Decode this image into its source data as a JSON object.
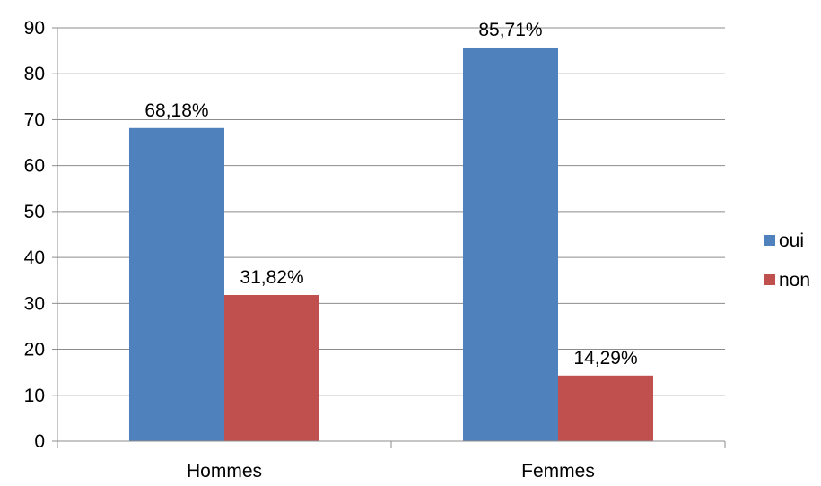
{
  "chart_data": {
    "type": "bar",
    "categories": [
      "Hommes",
      "Femmes"
    ],
    "series": [
      {
        "name": "oui",
        "values": [
          68.18,
          85.71
        ],
        "labels": [
          "68,18%",
          "85,71%"
        ],
        "color": "#4F81BD"
      },
      {
        "name": "non",
        "values": [
          31.82,
          14.29
        ],
        "labels": [
          "31,82%",
          "14,29%"
        ],
        "color": "#C0504D"
      }
    ],
    "title": "",
    "xlabel": "",
    "ylabel": "",
    "ylim": [
      0,
      90
    ],
    "yticks": [
      "0",
      "10",
      "20",
      "30",
      "40",
      "50",
      "60",
      "70",
      "80",
      "90"
    ],
    "grid": true,
    "legend": "right"
  }
}
